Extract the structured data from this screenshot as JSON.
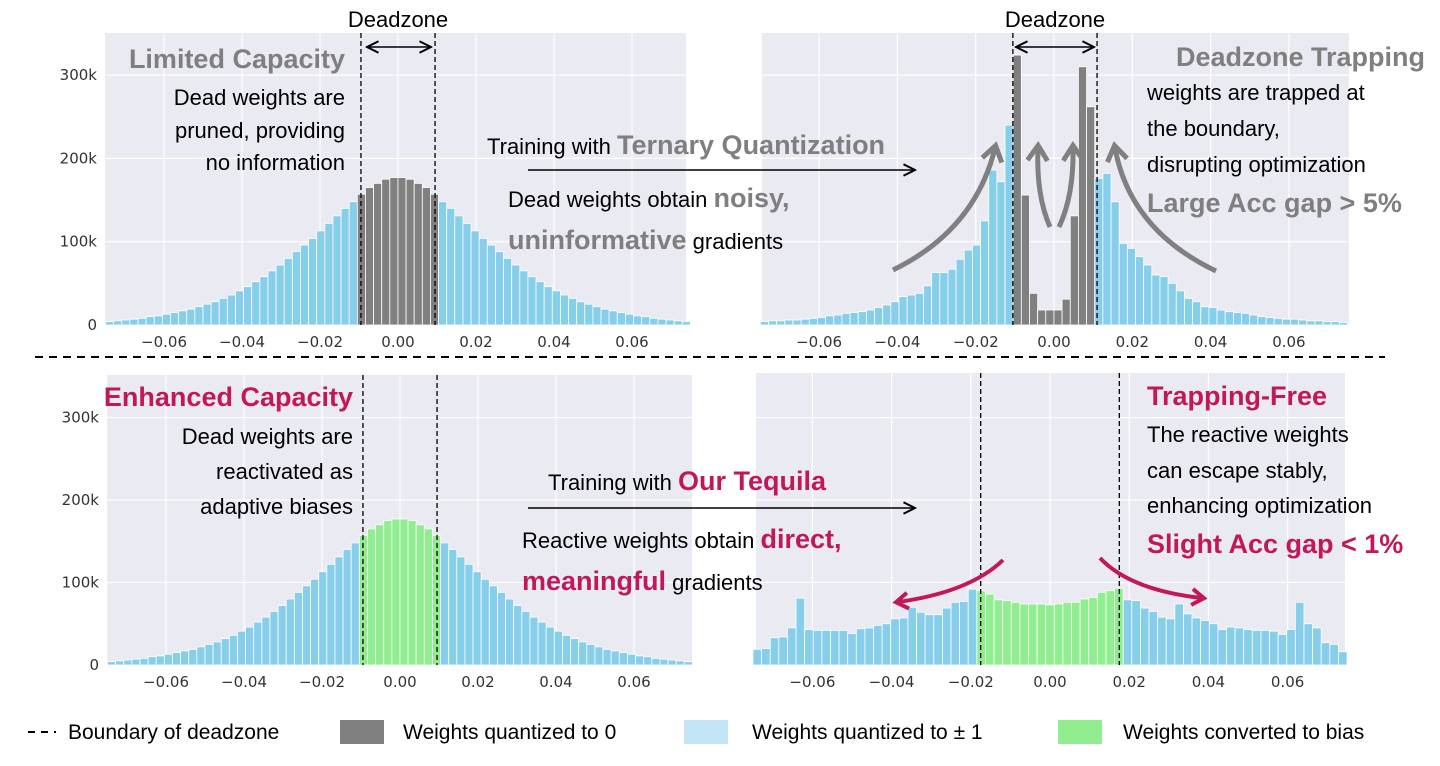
{
  "colors": {
    "plot_background": "#eaeaf2",
    "grid": "#ffffff",
    "weights_zero": "#808080",
    "weights_pm1": "#87ceeb",
    "weights_pm1_legend": "#c3e4f5",
    "weights_bias": "#90ee90",
    "emphasis_gray": "#7f7f7f",
    "emphasis_magenta": "#c2185b"
  },
  "annotations": {
    "top_left": {
      "deadzone": "Deadzone",
      "title": "Limited Capacity",
      "lines": [
        "Dead weights are",
        "pruned, providing",
        "no information"
      ]
    },
    "top_middle": {
      "training_prefix": "Training with ",
      "training_method": "Ternary Quantization",
      "line1_prefix": "Dead weights obtain ",
      "line1_emph": "noisy,",
      "line2_emph": "uninformative",
      "line2_suffix": " gradients"
    },
    "top_right": {
      "deadzone": "Deadzone",
      "title": "Deadzone Trapping",
      "lines": [
        "weights are trapped at",
        "the boundary,",
        "disrupting optimization"
      ],
      "gap": "Large Acc gap > 5%"
    },
    "bottom_left": {
      "title": "Enhanced Capacity",
      "lines": [
        "Dead weights are",
        "reactivated as",
        "adaptive biases"
      ]
    },
    "bottom_middle": {
      "training_prefix": "Training with ",
      "training_method": "Our Tequila",
      "line1_prefix": "Reactive weights obtain ",
      "line1_emph": "direct,",
      "line2_emph": "meaningful",
      "line2_suffix": " gradients"
    },
    "bottom_right": {
      "title": "Trapping-Free",
      "lines": [
        "The reactive weights",
        "can escape stably,",
        "enhancing optimization"
      ],
      "gap": "Slight Acc gap < 1%"
    }
  },
  "legend": [
    {
      "marker": "dashed-line",
      "label": "Boundary of deadzone"
    },
    {
      "marker": "gray-box",
      "label": "Weights quantized to 0"
    },
    {
      "marker": "blue-box",
      "label": "Weights quantized to ± 1"
    },
    {
      "marker": "green-box",
      "label": "Weights converted to bias"
    }
  ],
  "chart_data": [
    {
      "type": "bar",
      "panel": "top-left",
      "xlim": [
        -0.075,
        0.075
      ],
      "ylim": [
        0,
        350000
      ],
      "xticks": [
        "−0.06",
        "−0.04",
        "−0.02",
        "0.00",
        "0.02",
        "0.04",
        "0.06"
      ],
      "yticks": [
        "0",
        "100k",
        "200k",
        "300k"
      ],
      "grid": true,
      "bin_start": -0.075,
      "bin_width": 0.002083,
      "deadzone": [
        -0.0095,
        0.0095
      ],
      "inside_color": "gray",
      "outside_color": "blue",
      "values": [
        4000,
        5000,
        6000,
        7000,
        8000,
        10000,
        11000,
        13000,
        15000,
        17000,
        19000,
        22000,
        25000,
        28000,
        32000,
        36000,
        41000,
        46000,
        52000,
        58000,
        65000,
        72000,
        80000,
        88000,
        96000,
        104000,
        113000,
        122000,
        131000,
        140000,
        148000,
        157000,
        165000,
        170000,
        175000,
        177000,
        177000,
        175000,
        170000,
        165000,
        157000,
        148000,
        140000,
        131000,
        122000,
        113000,
        104000,
        96000,
        88000,
        80000,
        72000,
        65000,
        58000,
        52000,
        46000,
        41000,
        36000,
        32000,
        28000,
        25000,
        22000,
        19000,
        17000,
        15000,
        13000,
        11000,
        10000,
        8000,
        7000,
        6000,
        5000,
        4000
      ]
    },
    {
      "type": "bar",
      "panel": "top-right",
      "xlim": [
        -0.075,
        0.075
      ],
      "ylim": [
        0,
        350000
      ],
      "xticks": [
        "−0.06",
        "−0.04",
        "−0.02",
        "0.00",
        "0.02",
        "0.04",
        "0.06"
      ],
      "yticks": [],
      "grid": true,
      "bin_start": -0.075,
      "bin_width": 0.002083,
      "deadzone": [
        -0.0105,
        0.011
      ],
      "inside_color": "gray",
      "outside_color": "blue",
      "values": [
        4000,
        5000,
        5000,
        6000,
        6000,
        7000,
        8000,
        9000,
        11000,
        12000,
        14000,
        15000,
        16000,
        18000,
        21000,
        24000,
        28000,
        34000,
        36000,
        38000,
        47000,
        63000,
        63000,
        67000,
        79000,
        90000,
        96000,
        125000,
        186000,
        172000,
        240000,
        324000,
        156000,
        38000,
        18000,
        18000,
        18000,
        31000,
        131000,
        310000,
        262000,
        176000,
        182000,
        148000,
        98000,
        92000,
        82000,
        72000,
        60000,
        58000,
        50000,
        41000,
        32000,
        28000,
        22000,
        21000,
        18000,
        16000,
        15000,
        14000,
        12000,
        10000,
        9000,
        8000,
        7000,
        7000,
        6000,
        5000,
        5000,
        4000,
        4000,
        3000
      ]
    },
    {
      "type": "bar",
      "panel": "bottom-left",
      "xlim": [
        -0.075,
        0.075
      ],
      "ylim": [
        0,
        350000
      ],
      "xticks": [
        "−0.06",
        "−0.04",
        "−0.02",
        "0.00",
        "0.02",
        "0.04",
        "0.06"
      ],
      "yticks": [
        "0",
        "100k",
        "200k",
        "300k"
      ],
      "grid": true,
      "bin_start": -0.075,
      "bin_width": 0.002083,
      "deadzone": [
        -0.0095,
        0.0095
      ],
      "inside_color": "green",
      "outside_color": "blue",
      "values": [
        4000,
        5000,
        6000,
        7000,
        8000,
        10000,
        11000,
        13000,
        15000,
        17000,
        19000,
        22000,
        25000,
        28000,
        32000,
        36000,
        41000,
        46000,
        52000,
        58000,
        65000,
        72000,
        80000,
        88000,
        96000,
        104000,
        113000,
        122000,
        131000,
        140000,
        148000,
        157000,
        165000,
        170000,
        175000,
        177000,
        177000,
        175000,
        170000,
        165000,
        157000,
        148000,
        140000,
        131000,
        122000,
        113000,
        104000,
        96000,
        88000,
        80000,
        72000,
        65000,
        58000,
        52000,
        46000,
        41000,
        36000,
        32000,
        28000,
        25000,
        22000,
        19000,
        17000,
        15000,
        13000,
        11000,
        10000,
        8000,
        7000,
        6000,
        5000,
        4000
      ]
    },
    {
      "type": "bar",
      "panel": "bottom-right",
      "xlim": [
        -0.075,
        0.075
      ],
      "ylim": [
        0,
        350000
      ],
      "xticks": [
        "−0.06",
        "−0.04",
        "−0.02",
        "0.00",
        "0.02",
        "0.04",
        "0.06"
      ],
      "yticks": [],
      "grid": true,
      "bin_start": -0.075,
      "bin_width": 0.002174,
      "deadzone": [
        -0.0175,
        0.0175
      ],
      "inside_color": "green",
      "outside_color": "blue",
      "values": [
        19000,
        20000,
        33000,
        34000,
        45000,
        81000,
        43000,
        42000,
        42000,
        42000,
        42000,
        38000,
        44000,
        45000,
        48000,
        50000,
        56000,
        57000,
        70000,
        64000,
        61000,
        61000,
        69000,
        76000,
        77000,
        92000,
        90000,
        86000,
        79000,
        78000,
        76000,
        74000,
        74000,
        74000,
        73000,
        74000,
        76000,
        76000,
        80000,
        82000,
        88000,
        90000,
        93000,
        79000,
        78000,
        69000,
        65000,
        58000,
        56000,
        74000,
        62000,
        57000,
        54000,
        50000,
        43000,
        46000,
        45000,
        43000,
        42000,
        42000,
        41000,
        37000,
        43000,
        76000,
        50000,
        45000,
        27000,
        25000,
        16000
      ]
    }
  ]
}
